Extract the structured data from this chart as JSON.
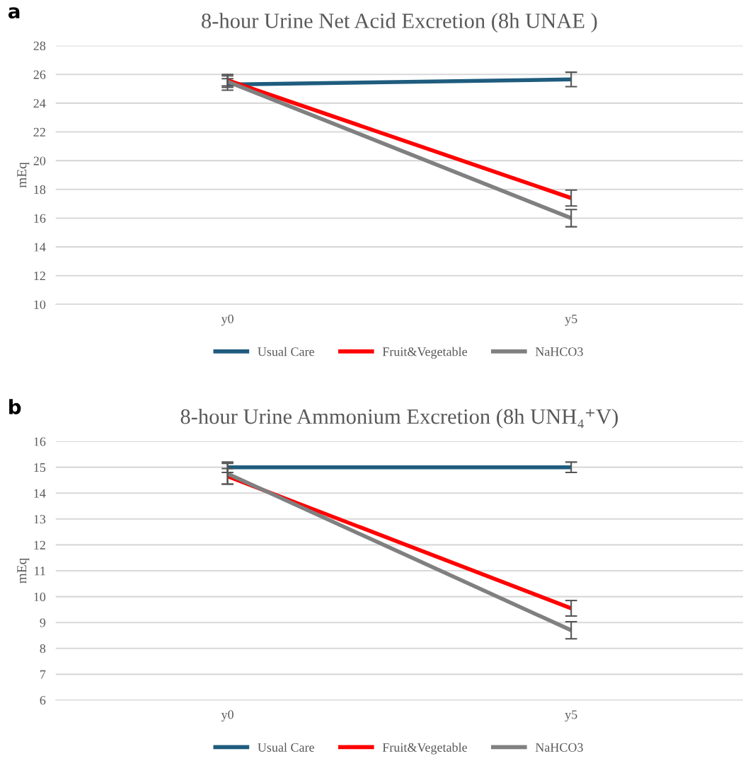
{
  "chart_data": [
    {
      "type": "line",
      "title": "8-hour Urine Net Acid Excretion (8h UNAE )",
      "ylabel": "mEq",
      "annotations": [
        "a"
      ],
      "categories": [
        "y0",
        "y5"
      ],
      "series": [
        {
          "name": "Usual Care",
          "color": "#1f5c7e",
          "values": [
            25.3,
            25.65
          ],
          "errors": [
            0.4,
            0.5
          ]
        },
        {
          "name": "Fruit&Vegetable",
          "color": "#ff0000",
          "values": [
            25.6,
            17.4
          ],
          "errors": [
            0.4,
            0.55
          ]
        },
        {
          "name": "NaHCO3",
          "color": "#808080",
          "values": [
            25.5,
            16.0
          ],
          "errors": [
            0.4,
            0.6
          ]
        }
      ],
      "ylim": [
        10,
        28
      ],
      "yticks": [
        10,
        12,
        14,
        16,
        18,
        20,
        22,
        24,
        26,
        28
      ],
      "grid": "y",
      "legend": "bottom",
      "marker": "none",
      "line_style": "solid"
    },
    {
      "type": "line",
      "title": "8-hour Urine Ammonium Excretion (8h UNH₄⁺V)",
      "ylabel": "mEq",
      "annotations": [
        "b"
      ],
      "categories": [
        "y0",
        "y5"
      ],
      "series": [
        {
          "name": "Usual Care",
          "color": "#1f5c7e",
          "values": [
            15.0,
            15.0
          ],
          "errors": [
            0.2,
            0.2
          ]
        },
        {
          "name": "Fruit&Vegetable",
          "color": "#ff0000",
          "values": [
            14.65,
            9.55
          ],
          "errors": [
            0.3,
            0.3
          ]
        },
        {
          "name": "NaHCO3",
          "color": "#808080",
          "values": [
            14.75,
            8.7
          ],
          "errors": [
            0.4,
            0.33
          ]
        }
      ],
      "ylim": [
        6,
        16
      ],
      "yticks": [
        6,
        7,
        8,
        9,
        10,
        11,
        12,
        13,
        14,
        15,
        16
      ],
      "grid": "y",
      "legend": "bottom",
      "marker": "none",
      "line_style": "solid"
    }
  ]
}
